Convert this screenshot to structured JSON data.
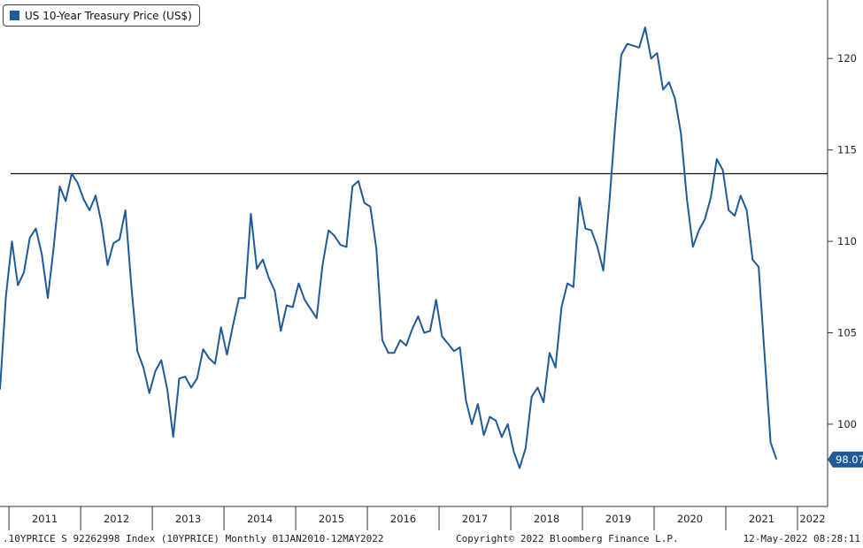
{
  "legend": {
    "label": "US 10-Year Treasury Price (US$)",
    "color": "#1f5a99"
  },
  "footer": {
    "left": ".10YPRICE S 92262998 Index (10YPRICE)  Monthly 01JAN2010-12MAY2022",
    "center": "Copyright© 2022 Bloomberg Finance L.P.",
    "right": "12-May-2022 08:28:11"
  },
  "chart_data": {
    "type": "line",
    "title": "",
    "xlabel": "",
    "ylabel": "",
    "ylim": [
      95.5,
      123.2
    ],
    "yticks": [
      100,
      105,
      110,
      115,
      120
    ],
    "xlim": [
      2010.875,
      2022.42
    ],
    "x_year_labels": [
      "2011",
      "2012",
      "2013",
      "2014",
      "2015",
      "2016",
      "2017",
      "2018",
      "2019",
      "2020",
      "2021",
      "2022"
    ],
    "grid": false,
    "legend_position": "top-left",
    "reference_line": {
      "value": 113.7,
      "color": "#111111"
    },
    "last_value_label": "98.07",
    "series": [
      {
        "name": "US 10-Year Treasury Price (US$)",
        "color": "#1f5a99",
        "x_start": 2010.875,
        "x_step": 0.08333,
        "values": [
          101.9,
          107.0,
          110.0,
          107.6,
          108.3,
          110.2,
          110.7,
          109.3,
          106.9,
          109.7,
          113.0,
          112.2,
          113.7,
          113.2,
          112.3,
          111.7,
          112.5,
          111.0,
          108.7,
          109.9,
          110.1,
          111.7,
          107.5,
          104.0,
          103.1,
          101.7,
          102.9,
          103.5,
          101.9,
          99.3,
          102.5,
          102.6,
          102.0,
          102.5,
          104.1,
          103.6,
          103.3,
          105.3,
          103.8,
          105.4,
          106.9,
          106.9,
          111.5,
          108.5,
          109.0,
          108.0,
          107.3,
          105.1,
          106.5,
          106.4,
          107.7,
          106.8,
          106.3,
          105.8,
          108.7,
          110.6,
          110.3,
          109.8,
          109.7,
          113.0,
          113.3,
          112.1,
          111.9,
          109.6,
          104.6,
          103.9,
          103.9,
          104.6,
          104.3,
          105.2,
          105.9,
          105.0,
          105.1,
          106.8,
          104.8,
          104.4,
          104.0,
          104.2,
          101.3,
          100.0,
          101.1,
          99.4,
          100.4,
          100.2,
          99.3,
          100.0,
          98.5,
          97.6,
          98.7,
          101.5,
          102.0,
          101.2,
          103.9,
          103.1,
          106.4,
          107.7,
          107.5,
          112.4,
          110.7,
          110.6,
          109.7,
          108.4,
          112.1,
          116.4,
          120.2,
          120.8,
          120.7,
          120.6,
          121.7,
          120.0,
          120.3,
          118.3,
          118.7,
          117.8,
          115.9,
          112.3,
          109.7,
          110.6,
          111.2,
          112.4,
          114.5,
          113.9,
          111.7,
          111.4,
          112.5,
          111.7,
          109.0,
          108.6,
          103.8,
          99.0,
          98.07
        ]
      }
    ]
  }
}
